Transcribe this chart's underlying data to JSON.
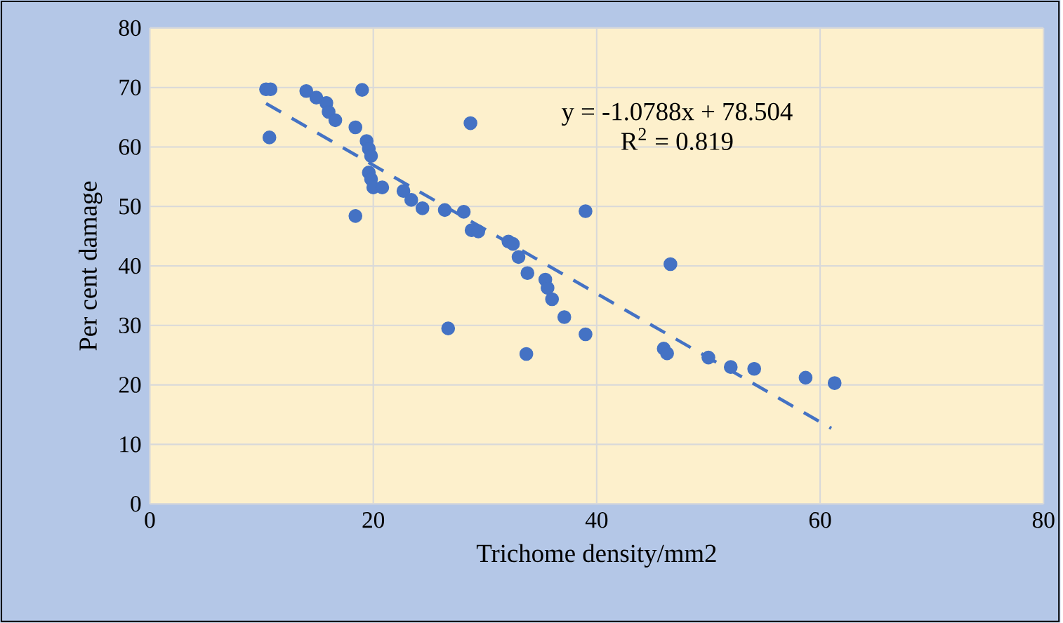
{
  "chart_data": {
    "type": "scatter",
    "xlabel": "Trichome density/mm2",
    "ylabel": "Per cent damage",
    "xlim": [
      0,
      80
    ],
    "ylim": [
      0,
      80
    ],
    "xticks": [
      0,
      20,
      40,
      60,
      80
    ],
    "yticks": [
      0,
      10,
      20,
      30,
      40,
      50,
      60,
      70,
      80
    ],
    "grid": true,
    "annotations": [
      "y = -1.0788x + 78.504",
      "R$^{2}$ = 0.819"
    ],
    "series": [
      {
        "marker": "circle",
        "color": "#4472c4",
        "x": [
          10.4,
          10.8,
          10.7,
          14.0,
          14.9,
          15.8,
          16.0,
          16.6,
          18.4,
          19.0,
          18.4,
          19.4,
          19.6,
          19.8,
          19.6,
          19.8,
          20.0,
          20.8,
          22.7,
          23.4,
          24.4,
          26.4,
          26.7,
          28.1,
          28.7,
          28.8,
          29.4,
          32.1,
          32.5,
          33.0,
          33.8,
          33.7,
          35.4,
          35.6,
          36.0,
          37.1,
          39.0,
          39.0,
          46.6,
          46.0,
          46.3,
          50.0,
          52.0,
          54.1,
          58.7,
          61.3
        ],
        "values": [
          69.7,
          69.7,
          61.6,
          69.4,
          68.3,
          67.4,
          65.9,
          64.5,
          63.3,
          69.6,
          48.4,
          61.0,
          59.7,
          58.5,
          55.7,
          54.6,
          53.2,
          53.2,
          52.6,
          51.1,
          49.7,
          49.4,
          29.5,
          49.1,
          64.0,
          46.0,
          45.8,
          44.1,
          43.7,
          41.5,
          38.8,
          25.2,
          37.7,
          36.3,
          34.4,
          31.4,
          49.2,
          28.5,
          40.3,
          26.1,
          25.3,
          24.6,
          23.0,
          22.7,
          21.2,
          20.3
        ]
      },
      {
        "type": "line",
        "color": "#4472c4",
        "line_style": "dashed",
        "x": [
          10.4,
          61.0
        ],
        "values": [
          67.3,
          12.7
        ]
      }
    ]
  }
}
